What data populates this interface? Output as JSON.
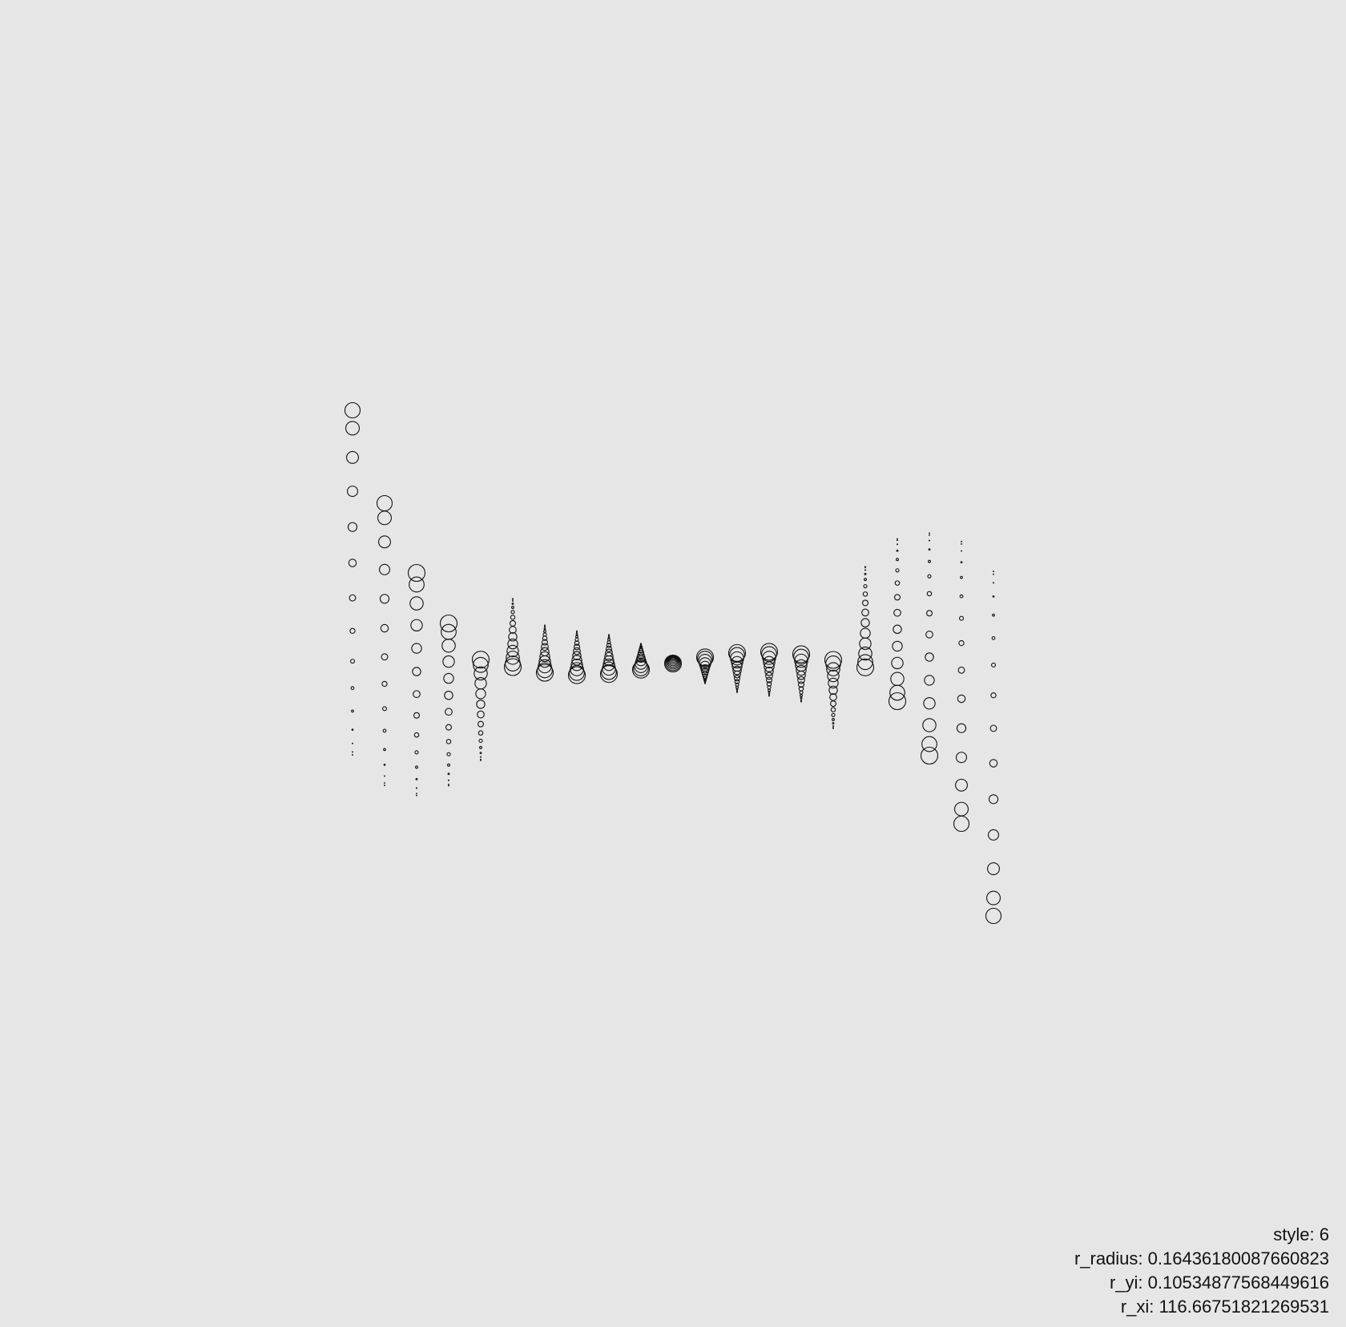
{
  "params": {
    "style_label": "style: 6",
    "r_radius_label": "r_radius: 0.16436180087660823",
    "r_yi_label": "r_yi: 0.10534877568449616",
    "r_xi_label": "r_xi: 116.66751821269531"
  },
  "colors": {
    "background": "#e6e6e6",
    "stroke": "#111111",
    "text": "#111111"
  }
}
